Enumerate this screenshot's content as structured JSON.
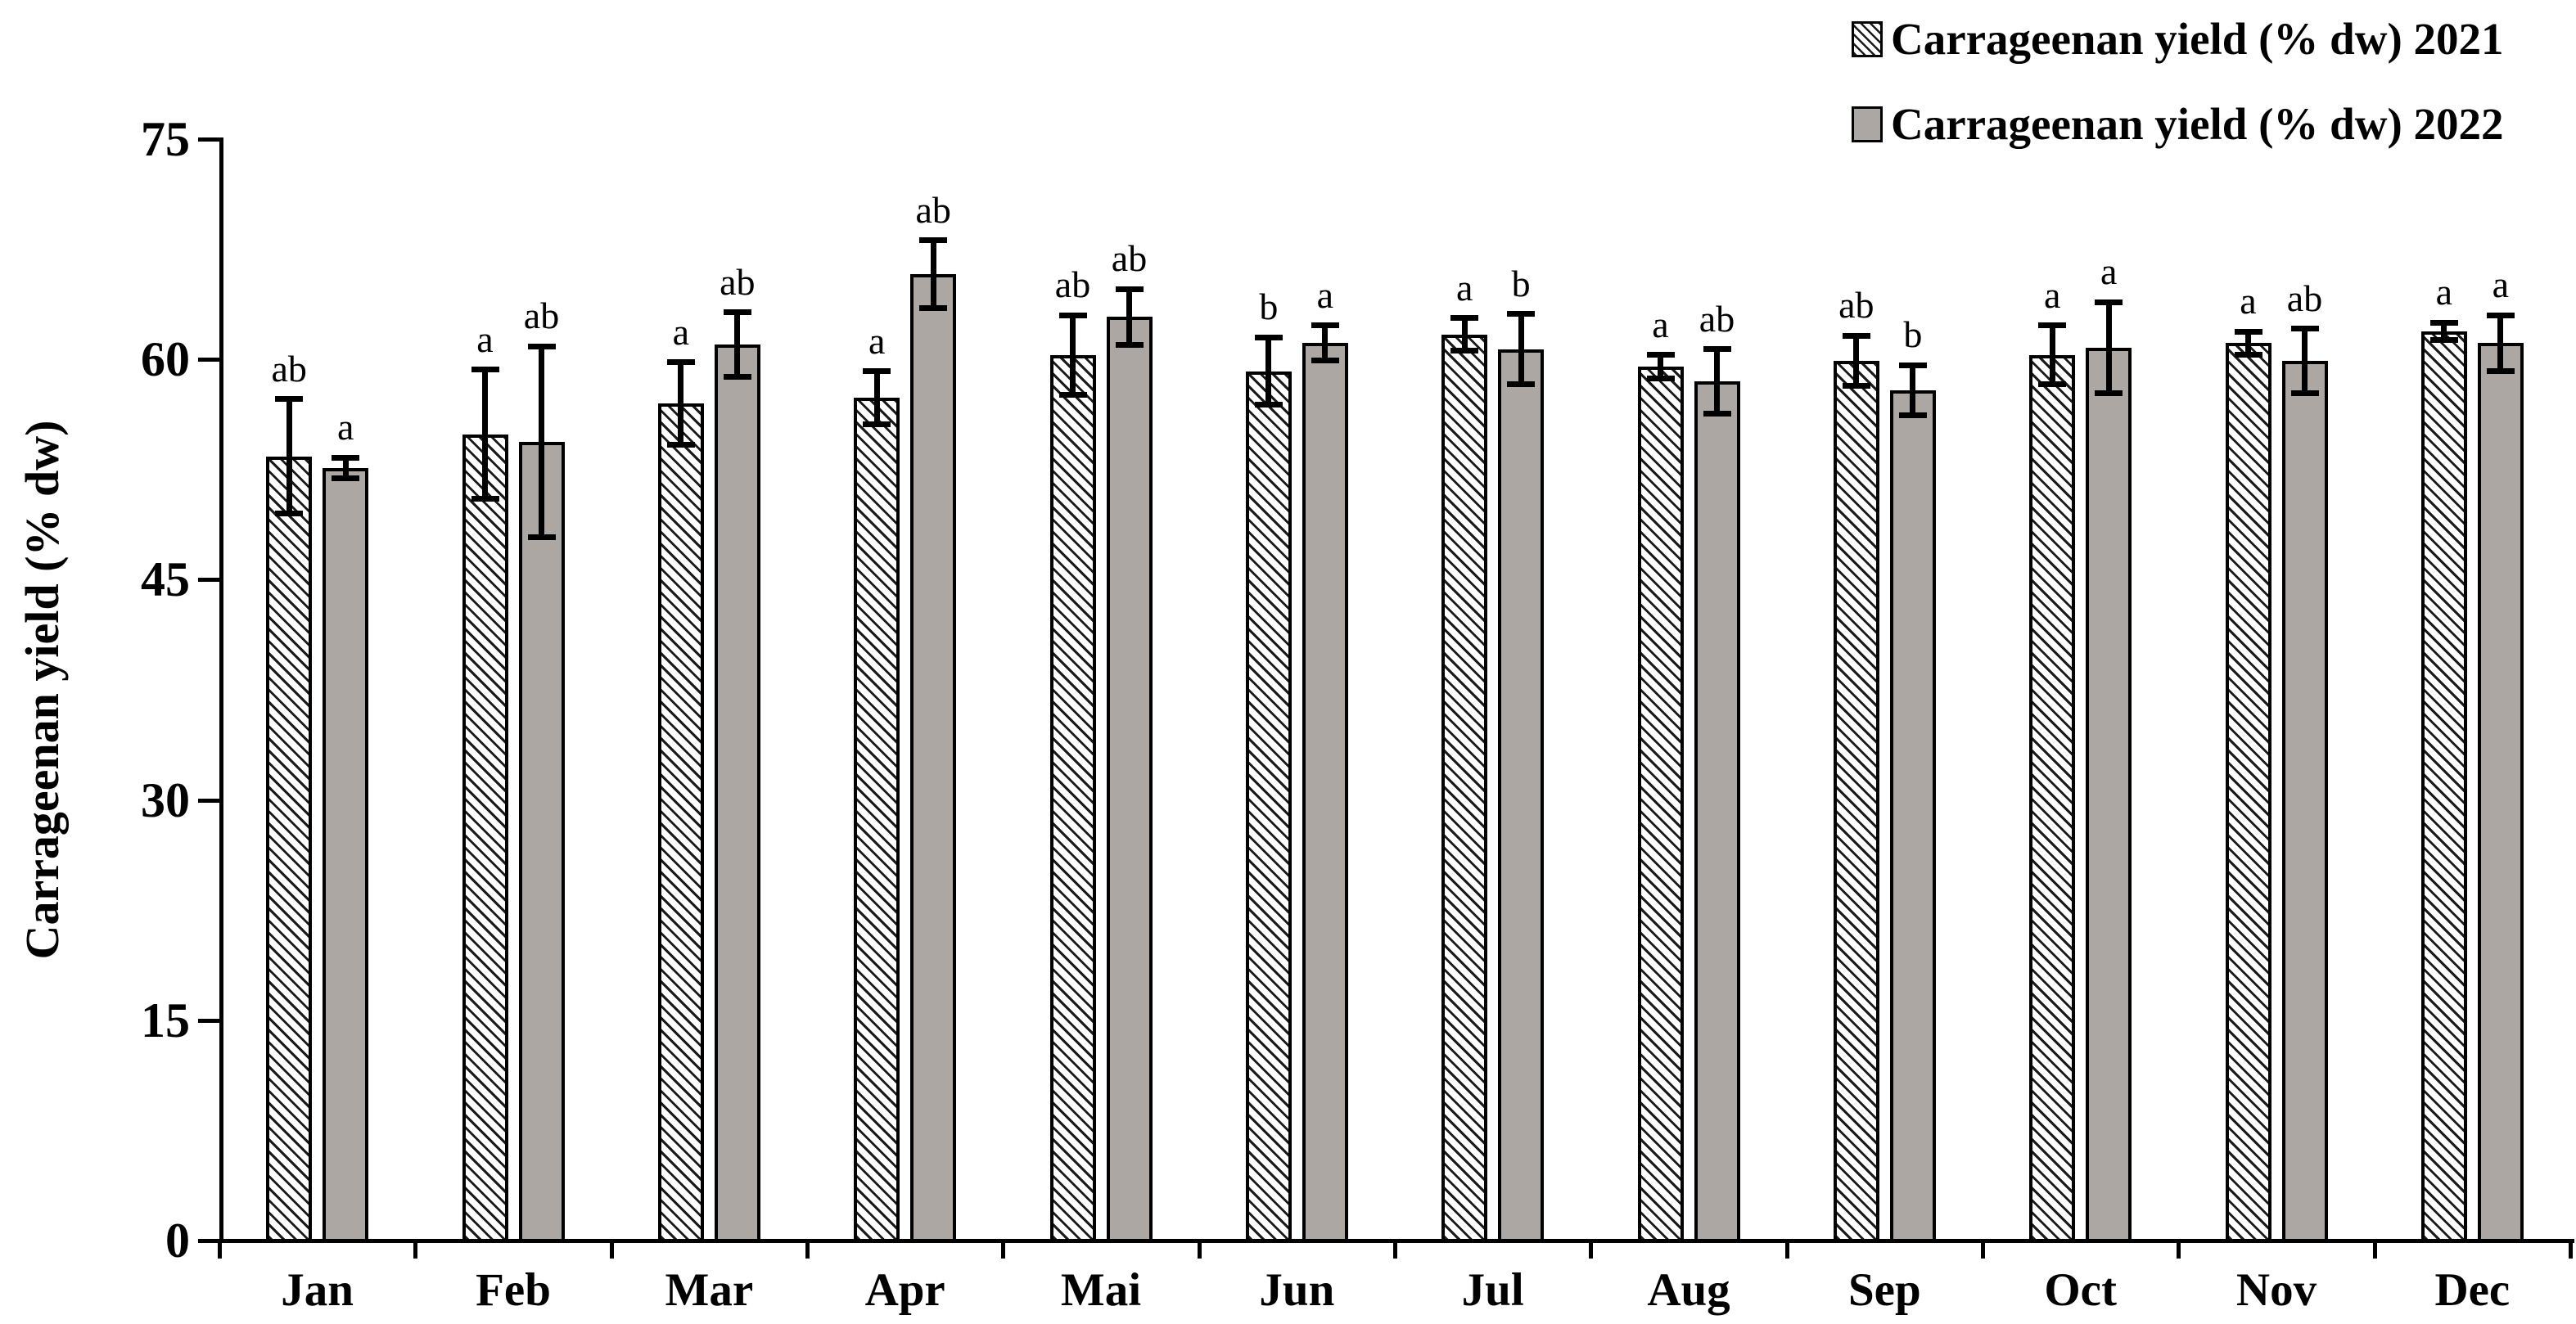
{
  "chart_data": {
    "type": "bar",
    "title": "",
    "ylabel": "Carrageenan yield (% dw)",
    "xlabel": "",
    "ylim": [
      0,
      75
    ],
    "yticks": [
      0,
      15,
      30,
      45,
      60,
      75
    ],
    "grid": false,
    "legend_position": "top-right",
    "categories": [
      "Jan",
      "Feb",
      "Mar",
      "Apr",
      "Mai",
      "Jun",
      "Jul",
      "Aug",
      "Sep",
      "Oct",
      "Nov",
      "Dec"
    ],
    "series": [
      {
        "name": "Carrageenan yield (% dw) 2021",
        "year": "2021",
        "style": "hatched",
        "values": [
          53.4,
          54.9,
          57.0,
          57.4,
          60.3,
          59.2,
          61.7,
          59.5,
          59.9,
          60.3,
          61.1,
          61.9
        ],
        "errors": [
          3.9,
          4.4,
          2.8,
          1.8,
          2.7,
          2.3,
          1.1,
          0.8,
          1.7,
          2.0,
          0.8,
          0.6
        ],
        "letters": [
          "ab",
          "a",
          "a",
          "a",
          "ab",
          "b",
          "a",
          "a",
          "ab",
          "a",
          "a",
          "a"
        ]
      },
      {
        "name": "Carrageenan yield (% dw) 2022",
        "year": "2022",
        "style": "solid",
        "values": [
          52.6,
          54.4,
          61.0,
          65.8,
          62.9,
          61.1,
          60.7,
          58.5,
          57.9,
          60.8,
          59.9,
          61.1
        ],
        "errors": [
          0.7,
          6.5,
          2.2,
          2.3,
          1.9,
          1.2,
          2.4,
          2.2,
          1.7,
          3.1,
          2.2,
          1.9
        ],
        "letters": [
          "a",
          "ab",
          "ab",
          "ab",
          "ab",
          "a",
          "b",
          "ab",
          "b",
          "a",
          "ab",
          "a"
        ]
      }
    ],
    "colors": {
      "bar_fill_2022": "#aca7a2",
      "bar_fill_2021": "#ffffff",
      "hatch_line": "#1a1a1a",
      "bar_border": "#000000",
      "axis": "#000000",
      "background": "#ffffff"
    }
  }
}
